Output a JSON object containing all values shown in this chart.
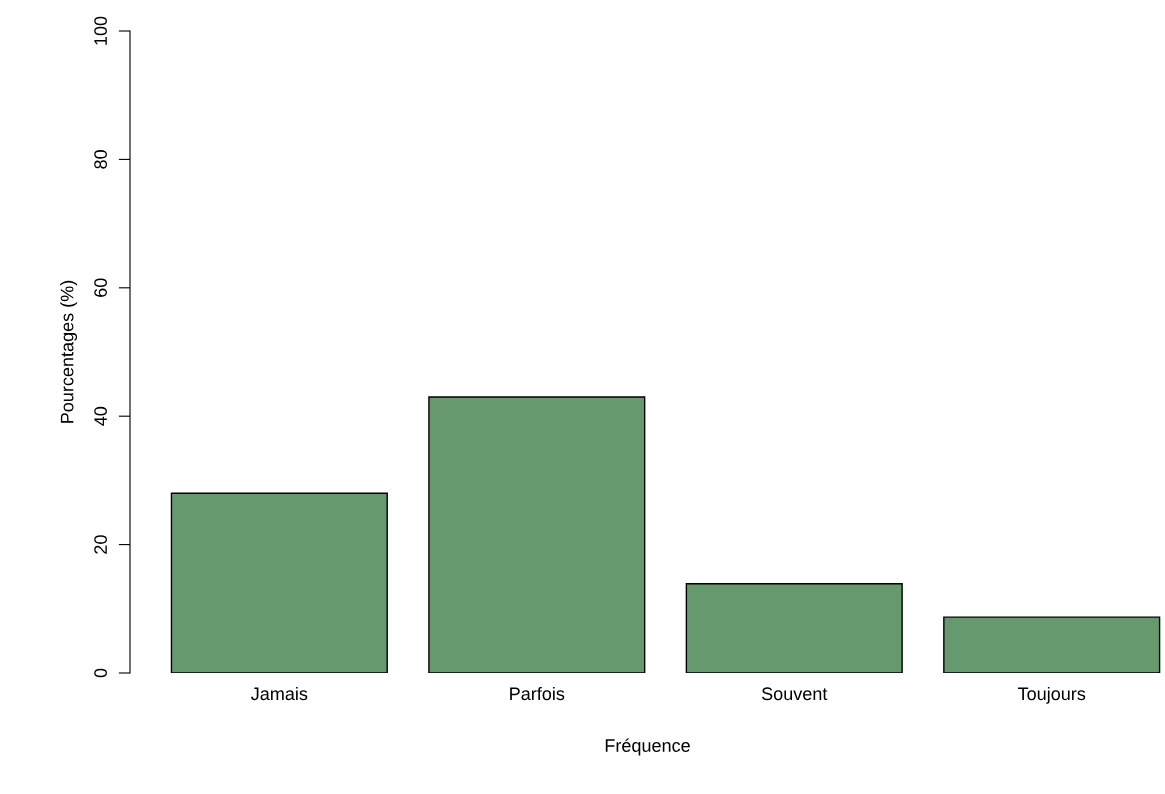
{
  "chart_data": {
    "type": "bar",
    "xlabel": "Fréquence",
    "ylabel": "Pourcentages (%)",
    "categories": [
      "Jamais",
      "Parfois",
      "Souvent",
      "Toujours"
    ],
    "values": [
      28,
      43,
      13.9,
      8.7
    ],
    "color": "#669a6e",
    "ylim": [
      0,
      100
    ],
    "yticks": [
      0,
      20,
      40,
      60,
      80,
      100
    ],
    "grid": false,
    "legend": false
  }
}
